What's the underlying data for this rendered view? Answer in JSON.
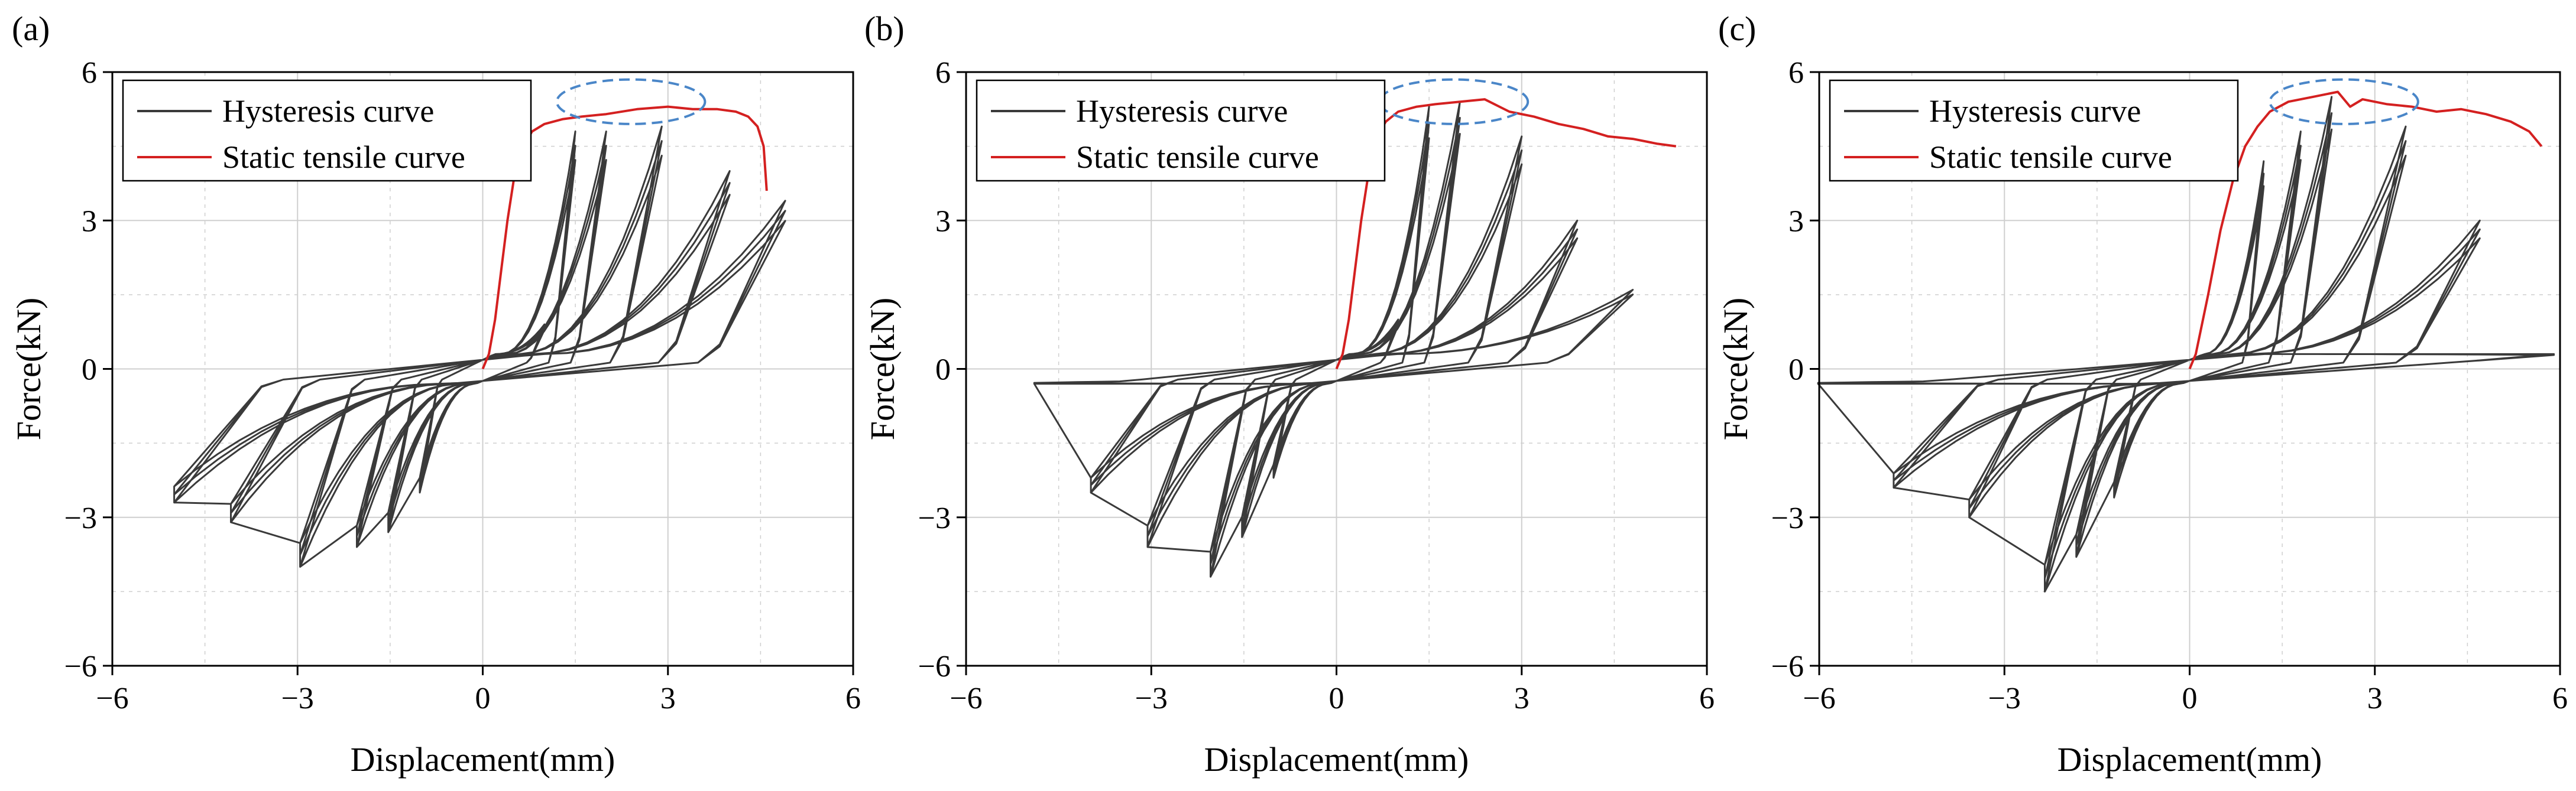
{
  "figure": {
    "panel_count": 3
  },
  "chart_data": [
    {
      "panel_label": "(a)",
      "type": "line",
      "xlabel": "Displacement(mm)",
      "ylabel": "Force(kN)",
      "xlim": [
        -6,
        6
      ],
      "ylim": [
        -6,
        6
      ],
      "xticks": [
        -6,
        -3,
        0,
        3,
        6
      ],
      "yticks": [
        -6,
        -3,
        0,
        3,
        6
      ],
      "xtick_labels": [
        "−6",
        "−3",
        "0",
        "3",
        "6"
      ],
      "ytick_labels": [
        "−6",
        "−3",
        "0",
        "3",
        "6"
      ],
      "grid": true,
      "legend": {
        "placement": "top-left",
        "entries": [
          "Hysteresis curve",
          "Static tensile curve"
        ]
      },
      "colors": {
        "hysteresis": "#3a3a3a",
        "static": "#d42020",
        "highlight": "#4a86c8",
        "grid": "#cfcfcf"
      },
      "highlight": {
        "shape": "dashed-ellipse",
        "center": [
          2.4,
          5.4
        ],
        "radius": [
          1.2,
          0.45
        ]
      },
      "series": [
        {
          "name": "Static tensile curve",
          "x": [
            0,
            0.1,
            0.2,
            0.3,
            0.4,
            0.5,
            0.6,
            0.7,
            0.8,
            1.0,
            1.3,
            1.6,
            2.0,
            2.5,
            3.0,
            3.4,
            3.8,
            4.1,
            4.3,
            4.45,
            4.55,
            4.6
          ],
          "y": [
            0,
            0.3,
            1.0,
            2.0,
            3.0,
            3.8,
            4.3,
            4.6,
            4.8,
            4.95,
            5.05,
            5.1,
            5.15,
            5.25,
            5.3,
            5.25,
            5.25,
            5.2,
            5.1,
            4.9,
            4.5,
            3.6
          ]
        },
        {
          "name": "Hysteresis curve",
          "loops": [
            {
              "amp": 1.0,
              "fmax": 0.9,
              "fmin": -2.5,
              "cycles": 3
            },
            {
              "amp": 1.5,
              "fmax": 4.8,
              "fmin": -3.3,
              "cycles": 3
            },
            {
              "amp": 2.0,
              "fmax": 4.8,
              "fmin": -3.6,
              "cycles": 3
            },
            {
              "amp": 2.9,
              "fmax": 4.9,
              "fmin": -4.0,
              "cycles": 3
            },
            {
              "amp": 4.0,
              "fmax": 4.0,
              "fmin": -3.1,
              "cycles": 3
            },
            {
              "amp": 4.9,
              "fmax": 3.4,
              "fmin": -2.7,
              "cycles": 3
            }
          ]
        }
      ]
    },
    {
      "panel_label": "(b)",
      "type": "line",
      "xlabel": "Displacement(mm)",
      "ylabel": "Force(kN)",
      "xlim": [
        -6,
        6
      ],
      "ylim": [
        -6,
        6
      ],
      "xticks": [
        -6,
        -3,
        0,
        3,
        6
      ],
      "yticks": [
        -6,
        -3,
        0,
        3,
        6
      ],
      "xtick_labels": [
        "−6",
        "−3",
        "0",
        "3",
        "6"
      ],
      "ytick_labels": [
        "−6",
        "−3",
        "0",
        "3",
        "6"
      ],
      "grid": true,
      "legend": {
        "placement": "top-left",
        "entries": [
          "Hysteresis curve",
          "Static tensile curve"
        ]
      },
      "colors": {
        "hysteresis": "#3a3a3a",
        "static": "#d42020",
        "highlight": "#4a86c8",
        "grid": "#cfcfcf"
      },
      "highlight": {
        "shape": "dashed-ellipse",
        "center": [
          1.9,
          5.4
        ],
        "radius": [
          1.2,
          0.45
        ]
      },
      "series": [
        {
          "name": "Static tensile curve",
          "x": [
            0,
            0.1,
            0.2,
            0.3,
            0.4,
            0.5,
            0.6,
            0.7,
            0.8,
            1.0,
            1.3,
            1.6,
            2.0,
            2.4,
            2.8,
            3.2,
            3.6,
            4.0,
            4.4,
            4.8,
            5.2,
            5.5
          ],
          "y": [
            0,
            0.3,
            1.0,
            2.0,
            3.0,
            3.8,
            4.4,
            4.8,
            5.0,
            5.2,
            5.3,
            5.35,
            5.4,
            5.45,
            5.2,
            5.1,
            4.95,
            4.85,
            4.7,
            4.65,
            4.55,
            4.5
          ]
        },
        {
          "name": "Hysteresis curve",
          "loops": [
            {
              "amp": 1.0,
              "fmax": 1.0,
              "fmin": -2.2,
              "cycles": 3
            },
            {
              "amp": 1.5,
              "fmax": 5.3,
              "fmin": -3.4,
              "cycles": 3
            },
            {
              "amp": 2.0,
              "fmax": 5.4,
              "fmin": -4.2,
              "cycles": 3
            },
            {
              "amp": 3.0,
              "fmax": 4.7,
              "fmin": -3.6,
              "cycles": 3
            },
            {
              "amp": 3.9,
              "fmax": 3.0,
              "fmin": -2.5,
              "cycles": 3
            },
            {
              "amp": 4.8,
              "fmax": 1.6,
              "fmin": -0.3,
              "cycles": 2
            }
          ]
        }
      ]
    },
    {
      "panel_label": "(c)",
      "type": "line",
      "xlabel": "Displacement(mm)",
      "ylabel": "Force(kN)",
      "xlim": [
        -6,
        6
      ],
      "ylim": [
        -6,
        6
      ],
      "xticks": [
        -6,
        -3,
        0,
        3,
        6
      ],
      "yticks": [
        -6,
        -3,
        0,
        3,
        6
      ],
      "xtick_labels": [
        "−6",
        "−3",
        "0",
        "3",
        "6"
      ],
      "ytick_labels": [
        "−6",
        "−3",
        "0",
        "3",
        "6"
      ],
      "grid": true,
      "legend": {
        "placement": "top-left",
        "entries": [
          "Hysteresis curve",
          "Static tensile curve"
        ]
      },
      "colors": {
        "hysteresis": "#3a3a3a",
        "static": "#d42020",
        "highlight": "#4a86c8",
        "grid": "#cfcfcf"
      },
      "highlight": {
        "shape": "dashed-ellipse",
        "center": [
          2.5,
          5.4
        ],
        "radius": [
          1.2,
          0.45
        ]
      },
      "series": [
        {
          "name": "Static tensile curve",
          "x": [
            0,
            0.1,
            0.3,
            0.5,
            0.7,
            0.9,
            1.1,
            1.3,
            1.6,
            2.0,
            2.4,
            2.6,
            2.8,
            3.2,
            3.6,
            4.0,
            4.4,
            4.8,
            5.2,
            5.5,
            5.7
          ],
          "y": [
            0,
            0.3,
            1.5,
            2.8,
            3.8,
            4.5,
            4.9,
            5.2,
            5.4,
            5.5,
            5.6,
            5.3,
            5.45,
            5.35,
            5.3,
            5.2,
            5.25,
            5.15,
            5.0,
            4.8,
            4.5
          ]
        },
        {
          "name": "Hysteresis curve",
          "loops": [
            {
              "amp": 1.2,
              "fmax": 4.2,
              "fmin": -2.6,
              "cycles": 3
            },
            {
              "amp": 1.8,
              "fmax": 4.8,
              "fmin": -3.8,
              "cycles": 3
            },
            {
              "amp": 2.3,
              "fmax": 5.5,
              "fmin": -4.5,
              "cycles": 3
            },
            {
              "amp": 3.5,
              "fmax": 4.9,
              "fmin": -3.0,
              "cycles": 3
            },
            {
              "amp": 4.7,
              "fmax": 3.0,
              "fmin": -2.4,
              "cycles": 3
            },
            {
              "amp": 5.9,
              "fmax": 0.3,
              "fmin": -0.3,
              "cycles": 2
            }
          ]
        }
      ]
    }
  ]
}
